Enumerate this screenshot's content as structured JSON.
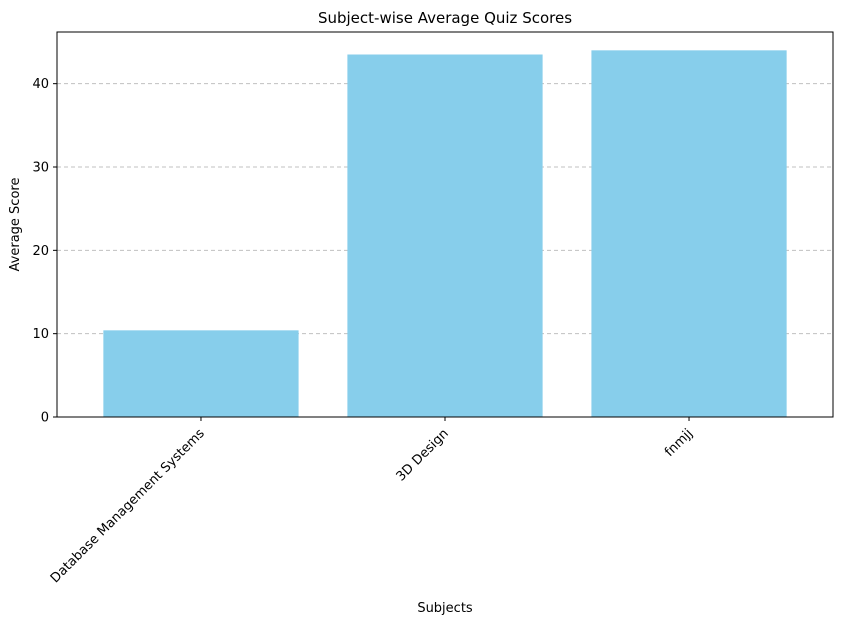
{
  "chart_data": {
    "type": "bar",
    "title": "Subject-wise Average Quiz Scores",
    "xlabel": "Subjects",
    "ylabel": "Average Score",
    "categories": [
      "Database Management Systems",
      "3D Design",
      "fnmjj"
    ],
    "values": [
      10.4,
      43.5,
      44.0
    ],
    "ylim": [
      0,
      46.2
    ],
    "yticks": [
      0,
      10,
      20,
      30,
      40
    ],
    "grid": "y-dashed",
    "legend": "none",
    "bar_color": "#87CEEB",
    "grid_color": "#c0c0c0",
    "x_tick_rotation_deg": 45
  }
}
